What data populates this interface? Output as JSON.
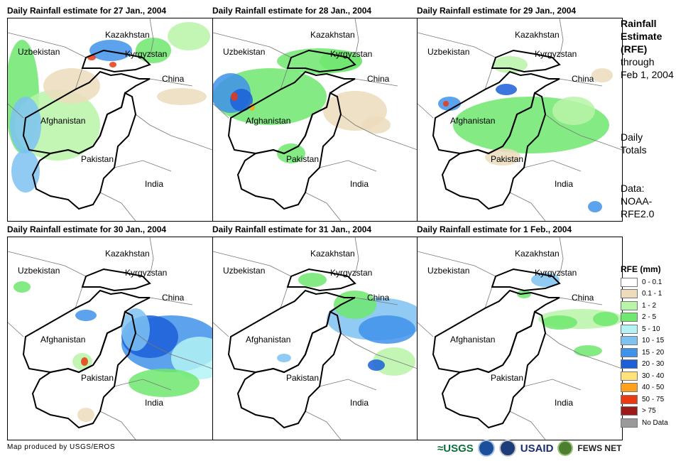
{
  "panels": [
    {
      "title": "Daily Rainfall estimate for 27 Jan., 2004"
    },
    {
      "title": "Daily Rainfall estimate for 28 Jan., 2004"
    },
    {
      "title": "Daily Rainfall estimate for 29 Jan., 2004"
    },
    {
      "title": "Daily Rainfall estimate for 30 Jan., 2004"
    },
    {
      "title": "Daily Rainfall estimate for 31 Jan., 2004"
    },
    {
      "title": "Daily Rainfall estimate for 1 Feb., 2004"
    }
  ],
  "map_labels": {
    "kazakhstan": "Kazakhstan",
    "uzbekistan": "Uzbekistan",
    "kyrgyzstan": "Kyrgyzstan",
    "china": "China",
    "afghanistan": "Afghanistan",
    "pakistan": "Pakistan",
    "india": "India"
  },
  "side": {
    "title_lines": [
      "Rainfall",
      "Estimate",
      "(RFE)"
    ],
    "through": "through",
    "date": "Feb 1, 2004",
    "daily_1": "Daily",
    "daily_2": "Totals",
    "data_1": "Data:",
    "data_2": "NOAA-",
    "data_3": "RFE2.0"
  },
  "legend": {
    "title": "RFE (mm)",
    "items": [
      {
        "label": "0 - 0.1",
        "color": "#ffffff"
      },
      {
        "label": "0.1 - 1",
        "color": "#ecdcbc"
      },
      {
        "label": "1 - 2",
        "color": "#b9f5a8"
      },
      {
        "label": "2 - 5",
        "color": "#6ee86e"
      },
      {
        "label": "5 - 10",
        "color": "#b3f3f5"
      },
      {
        "label": "10 - 15",
        "color": "#7ec2f2"
      },
      {
        "label": "15 - 20",
        "color": "#3f92ea"
      },
      {
        "label": "20 - 30",
        "color": "#1b5fd8"
      },
      {
        "label": "30 - 40",
        "color": "#ffe27a"
      },
      {
        "label": "40 - 50",
        "color": "#ffa11a"
      },
      {
        "label": "50 - 75",
        "color": "#e93a12"
      },
      {
        "label": "> 75",
        "color": "#9b1a1a"
      },
      {
        "label": "No Data",
        "color": "#9a9a9a"
      }
    ]
  },
  "footer": {
    "credit": "Map produced by USGS/EROS",
    "logo_usgs": "≈USGS",
    "logo_usaid": "USAID",
    "logo_fews": "FEWS NET"
  }
}
